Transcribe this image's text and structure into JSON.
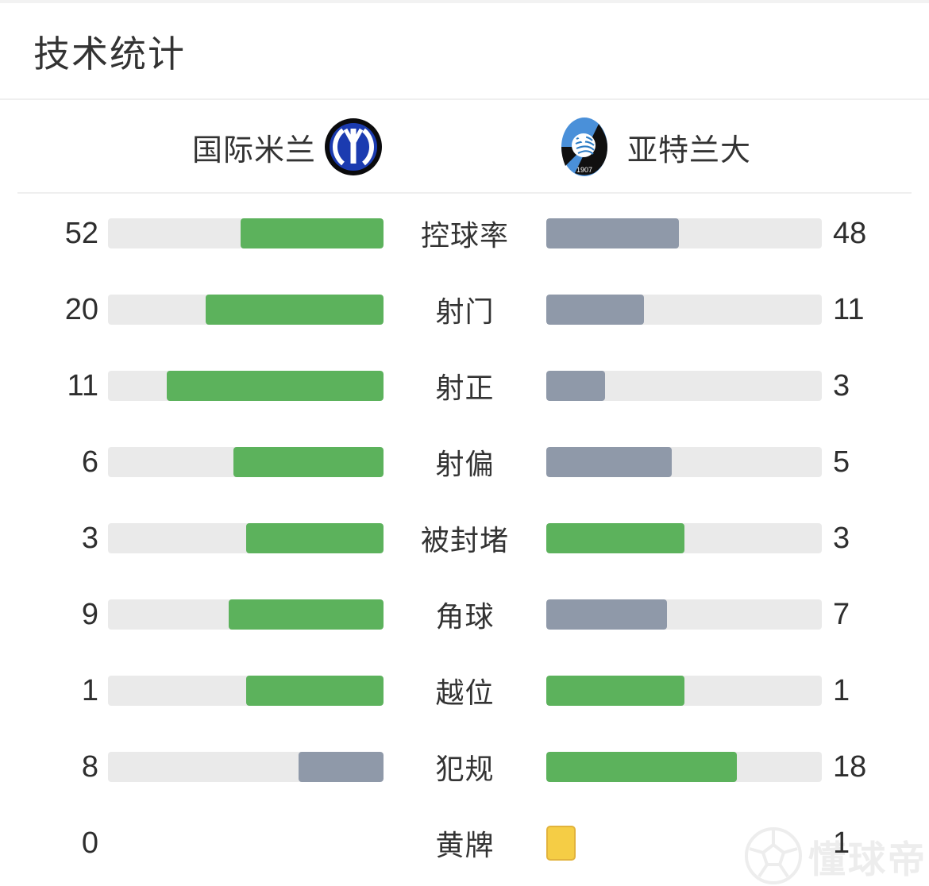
{
  "header": {
    "title": "技术统计"
  },
  "teams": {
    "home": {
      "name": "国际米兰",
      "crest": "inter-crest"
    },
    "away": {
      "name": "亚特兰大",
      "crest": "atalanta-crest"
    }
  },
  "colors": {
    "win_fill": "#5cb25c",
    "lose_fill": "#8f99a9",
    "track": "#eaeaea",
    "yellow_card": "#f5cd45",
    "yellow_card_border": "#e2b33c",
    "text": "#333333",
    "watermark": "#ededed"
  },
  "special": {
    "yellow_row_label": "黄牌"
  },
  "watermark": {
    "text": "懂球帝",
    "icon": "football-icon"
  },
  "chart_data": {
    "type": "bar",
    "title": "技术统计",
    "orientation": "mirrored-horizontal",
    "categories": [
      "控球率",
      "射门",
      "射正",
      "射偏",
      "被封堵",
      "角球",
      "越位",
      "犯规",
      "黄牌"
    ],
    "series": [
      {
        "name": "国际米兰",
        "values": [
          52,
          20,
          11,
          6,
          3,
          9,
          1,
          8,
          0
        ]
      },
      {
        "name": "亚特兰大",
        "values": [
          48,
          11,
          3,
          5,
          3,
          7,
          1,
          18,
          1
        ]
      }
    ],
    "notes": "fill fraction = value/(home+away); side with greater-or-equal value is green, lower side gray-blue; 黄牌 row shows a yellow card icon instead of bars"
  }
}
